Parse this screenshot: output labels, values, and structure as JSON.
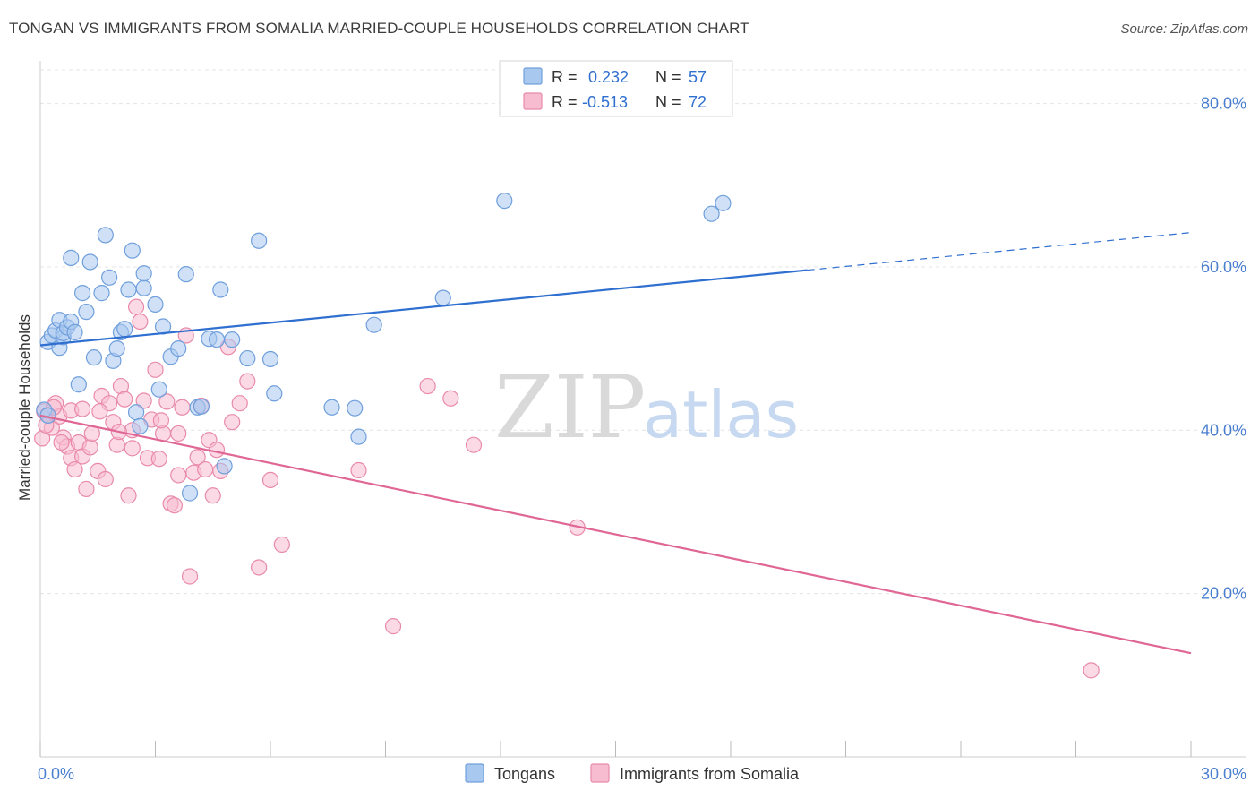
{
  "title": "TONGAN VS IMMIGRANTS FROM SOMALIA MARRIED-COUPLE HOUSEHOLDS CORRELATION CHART",
  "source": "Source: ZipAtlas.com",
  "watermark": {
    "zip": "ZIP",
    "atlas": "atlas"
  },
  "colors": {
    "tongans_fill": "#a9c8f0",
    "tongans_stroke": "#6f9fdc",
    "tongans_line": "#2e6fd0",
    "somalia_fill": "#f7bcd0",
    "somalia_stroke": "#e98aaa",
    "somalia_line": "#e06694",
    "axis_text": "#4a7fd0",
    "grid": "#e4e4e4"
  },
  "legend": {
    "r_label": "R =",
    "n_label": "N =",
    "tongans": {
      "r": "0.232",
      "n": "57"
    },
    "somalia": {
      "r": "-0.513",
      "n": "72"
    }
  },
  "chart_data": {
    "type": "scatter",
    "title": "TONGAN VS IMMIGRANTS FROM SOMALIA MARRIED-COUPLE HOUSEHOLDS CORRELATION CHART",
    "xlabel": "",
    "ylabel": "Married-couple Households",
    "xlim": [
      0,
      30
    ],
    "ylim": [
      0,
      85
    ],
    "x_ticks": [
      0,
      30
    ],
    "x_tick_labels": [
      "0.0%",
      "30.0%"
    ],
    "y_ticks": [
      20,
      40,
      60,
      80
    ],
    "y_tick_labels": [
      "20.0%",
      "40.0%",
      "60.0%",
      "80.0%"
    ],
    "grid": true,
    "legend_position": "top-center",
    "series": [
      {
        "name": "Tongans",
        "trend": {
          "x0": 0,
          "y0": 50.4,
          "x1": 20,
          "y1": 59.6,
          "dash_to_x": 30,
          "dash_to_y": 64.2
        },
        "points": [
          [
            0.2,
            50.8
          ],
          [
            0.3,
            51.6
          ],
          [
            0.4,
            52.2
          ],
          [
            0.5,
            50.1
          ],
          [
            0.5,
            53.5
          ],
          [
            0.6,
            51.4
          ],
          [
            0.6,
            51.9
          ],
          [
            0.7,
            52.6
          ],
          [
            0.8,
            53.3
          ],
          [
            0.8,
            61.1
          ],
          [
            0.9,
            52.0
          ],
          [
            1.0,
            45.6
          ],
          [
            1.1,
            56.8
          ],
          [
            1.2,
            54.5
          ],
          [
            1.3,
            60.6
          ],
          [
            1.4,
            48.9
          ],
          [
            1.6,
            56.8
          ],
          [
            1.7,
            63.9
          ],
          [
            1.8,
            58.7
          ],
          [
            1.9,
            48.5
          ],
          [
            2.0,
            50.0
          ],
          [
            2.1,
            52.0
          ],
          [
            2.2,
            52.4
          ],
          [
            2.3,
            57.2
          ],
          [
            2.4,
            62.0
          ],
          [
            2.5,
            42.2
          ],
          [
            2.6,
            40.5
          ],
          [
            2.7,
            57.4
          ],
          [
            2.7,
            59.2
          ],
          [
            3.0,
            55.4
          ],
          [
            3.1,
            45.0
          ],
          [
            3.2,
            52.7
          ],
          [
            3.4,
            49.0
          ],
          [
            3.6,
            50.0
          ],
          [
            3.8,
            59.1
          ],
          [
            3.9,
            32.3
          ],
          [
            4.1,
            42.8
          ],
          [
            4.2,
            42.9
          ],
          [
            4.4,
            51.2
          ],
          [
            4.6,
            51.1
          ],
          [
            4.7,
            57.2
          ],
          [
            4.8,
            35.6
          ],
          [
            5.0,
            51.1
          ],
          [
            5.4,
            48.8
          ],
          [
            5.7,
            63.2
          ],
          [
            6.0,
            48.7
          ],
          [
            6.1,
            44.5
          ],
          [
            7.6,
            42.8
          ],
          [
            8.2,
            42.7
          ],
          [
            8.3,
            39.2
          ],
          [
            8.7,
            52.9
          ],
          [
            10.5,
            56.2
          ],
          [
            12.1,
            68.1
          ],
          [
            17.5,
            66.5
          ],
          [
            17.8,
            67.8
          ],
          [
            0.1,
            42.5
          ],
          [
            0.2,
            41.8
          ]
        ]
      },
      {
        "name": "Immigrants from Somalia",
        "trend": {
          "x0": 0,
          "y0": 41.8,
          "x1": 30,
          "y1": 12.7
        },
        "points": [
          [
            0.05,
            39.0
          ],
          [
            0.1,
            42.3
          ],
          [
            0.2,
            41.9
          ],
          [
            0.3,
            40.3
          ],
          [
            0.4,
            43.3
          ],
          [
            0.5,
            41.7
          ],
          [
            0.6,
            39.1
          ],
          [
            0.7,
            38.0
          ],
          [
            0.8,
            42.4
          ],
          [
            0.8,
            36.6
          ],
          [
            0.9,
            35.2
          ],
          [
            1.0,
            38.5
          ],
          [
            1.1,
            36.8
          ],
          [
            1.1,
            42.6
          ],
          [
            1.2,
            32.8
          ],
          [
            1.3,
            37.9
          ],
          [
            1.5,
            35.0
          ],
          [
            1.6,
            44.2
          ],
          [
            1.7,
            34.0
          ],
          [
            1.8,
            43.3
          ],
          [
            1.9,
            41.0
          ],
          [
            2.0,
            38.2
          ],
          [
            2.1,
            45.4
          ],
          [
            2.2,
            43.8
          ],
          [
            2.3,
            32.0
          ],
          [
            2.4,
            40.0
          ],
          [
            2.4,
            37.8
          ],
          [
            2.5,
            55.1
          ],
          [
            2.6,
            53.3
          ],
          [
            2.7,
            43.6
          ],
          [
            2.8,
            36.6
          ],
          [
            2.9,
            41.3
          ],
          [
            3.0,
            47.4
          ],
          [
            3.1,
            36.5
          ],
          [
            3.2,
            39.6
          ],
          [
            3.3,
            43.5
          ],
          [
            3.4,
            31.0
          ],
          [
            3.5,
            30.8
          ],
          [
            3.6,
            34.5
          ],
          [
            3.6,
            39.6
          ],
          [
            3.7,
            42.8
          ],
          [
            3.8,
            51.6
          ],
          [
            3.9,
            22.1
          ],
          [
            4.0,
            34.8
          ],
          [
            4.1,
            36.7
          ],
          [
            4.2,
            43.0
          ],
          [
            4.3,
            35.2
          ],
          [
            4.4,
            38.8
          ],
          [
            4.5,
            32.0
          ],
          [
            4.6,
            37.6
          ],
          [
            4.7,
            35.0
          ],
          [
            4.9,
            50.2
          ],
          [
            5.0,
            41.0
          ],
          [
            5.2,
            43.3
          ],
          [
            5.4,
            46.0
          ],
          [
            5.7,
            23.2
          ],
          [
            6.0,
            33.9
          ],
          [
            6.3,
            26.0
          ],
          [
            8.3,
            35.1
          ],
          [
            9.2,
            16.0
          ],
          [
            10.1,
            45.4
          ],
          [
            10.7,
            43.9
          ],
          [
            11.3,
            38.2
          ],
          [
            14.0,
            28.1
          ],
          [
            27.4,
            10.6
          ],
          [
            0.15,
            40.6
          ],
          [
            0.35,
            42.8
          ],
          [
            0.55,
            38.5
          ],
          [
            1.35,
            39.6
          ],
          [
            2.05,
            39.8
          ],
          [
            3.15,
            41.2
          ],
          [
            1.55,
            42.3
          ]
        ]
      }
    ]
  }
}
